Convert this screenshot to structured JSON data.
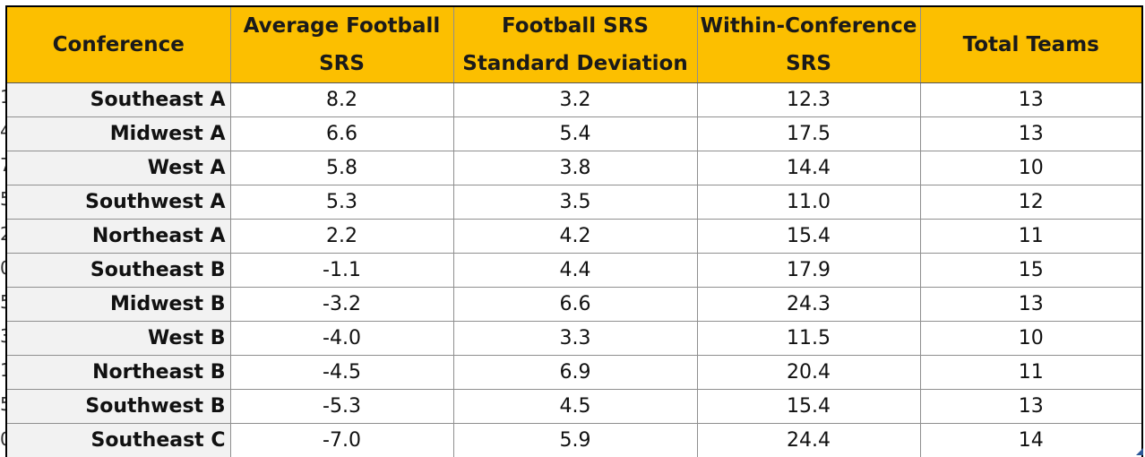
{
  "columns": {
    "conference": "Conference",
    "avg_srs": "Average Football SRS",
    "srs_sd": "Football SRS Standard Deviation",
    "within_srs": "Within-Conference SRS",
    "total_teams": "Total Teams"
  },
  "row_stubs": [
    "1",
    "4",
    "7",
    "5",
    "2",
    "0",
    "5",
    "3",
    "1",
    "5",
    "0"
  ],
  "rows": [
    {
      "conference": "Southeast A",
      "avg_srs": "8.2",
      "srs_sd": "3.2",
      "within_srs": "12.3",
      "total_teams": "13"
    },
    {
      "conference": "Midwest A",
      "avg_srs": "6.6",
      "srs_sd": "5.4",
      "within_srs": "17.5",
      "total_teams": "13"
    },
    {
      "conference": "West A",
      "avg_srs": "5.8",
      "srs_sd": "3.8",
      "within_srs": "14.4",
      "total_teams": "10"
    },
    {
      "conference": "Southwest A",
      "avg_srs": "5.3",
      "srs_sd": "3.5",
      "within_srs": "11.0",
      "total_teams": "12"
    },
    {
      "conference": "Northeast A",
      "avg_srs": "2.2",
      "srs_sd": "4.2",
      "within_srs": "15.4",
      "total_teams": "11"
    },
    {
      "conference": "Southeast B",
      "avg_srs": "-1.1",
      "srs_sd": "4.4",
      "within_srs": "17.9",
      "total_teams": "15"
    },
    {
      "conference": "Midwest B",
      "avg_srs": "-3.2",
      "srs_sd": "6.6",
      "within_srs": "24.3",
      "total_teams": "13"
    },
    {
      "conference": "West B",
      "avg_srs": "-4.0",
      "srs_sd": "3.3",
      "within_srs": "11.5",
      "total_teams": "10"
    },
    {
      "conference": "Northeast B",
      "avg_srs": "-4.5",
      "srs_sd": "6.9",
      "within_srs": "20.4",
      "total_teams": "11"
    },
    {
      "conference": "Southwest B",
      "avg_srs": "-5.3",
      "srs_sd": "4.5",
      "within_srs": "15.4",
      "total_teams": "13"
    },
    {
      "conference": "Southeast C",
      "avg_srs": "-7.0",
      "srs_sd": "5.9",
      "within_srs": "24.4",
      "total_teams": "14"
    }
  ],
  "colors": {
    "header_fill": "#fcbf00",
    "first_column_fill": "#f2f2f2",
    "gridline": "#8f8f8f"
  }
}
